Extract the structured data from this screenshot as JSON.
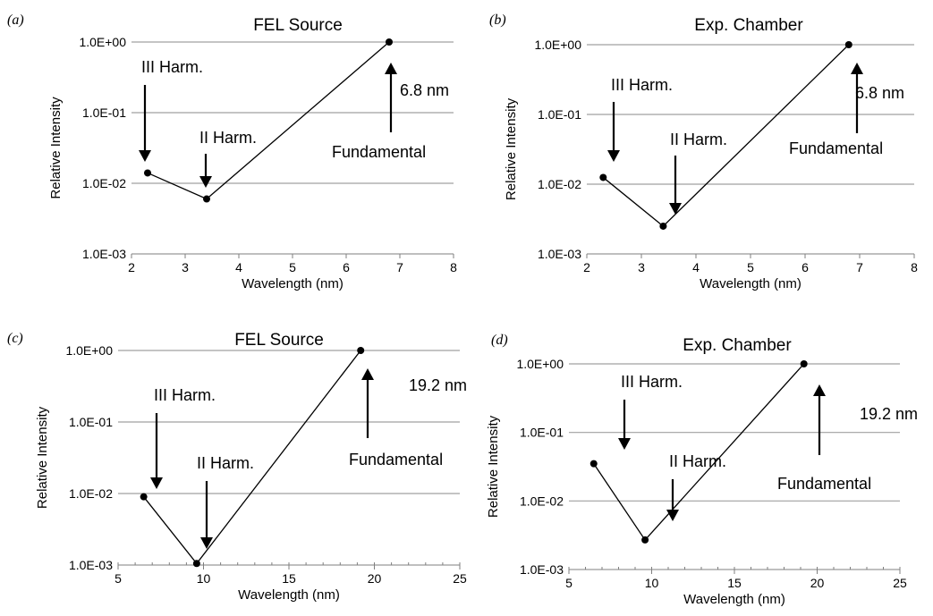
{
  "chart_data": [
    {
      "type": "line",
      "panel_label": "(a)",
      "title": "FEL Source",
      "xlabel": "Wavelength (nm)",
      "ylabel": "Relative Intensity",
      "yscale": "log",
      "xlim": [
        2,
        8
      ],
      "ylim": [
        0.001,
        1
      ],
      "xticks": [
        "2",
        "3",
        "4",
        "5",
        "6",
        "7",
        "8"
      ],
      "yticks": [
        "1.0E-03",
        "1.0E-02",
        "1.0E-01",
        "1.0E+00"
      ],
      "series": [
        {
          "x": [
            2.3,
            3.4,
            6.8
          ],
          "y": [
            0.014,
            0.006,
            1.0
          ]
        }
      ],
      "annotations": [
        {
          "text": "III Harm.",
          "arrow": "down"
        },
        {
          "text": "II Harm.",
          "arrow": "down"
        },
        {
          "text": "6.8 nm",
          "arrow": "up"
        },
        {
          "text": "Fundamental"
        }
      ]
    },
    {
      "type": "line",
      "panel_label": "(b)",
      "title": "Exp. Chamber",
      "xlabel": "Wavelength (nm)",
      "ylabel": "Relative Intensity",
      "yscale": "log",
      "xlim": [
        2,
        8
      ],
      "ylim": [
        0.001,
        1
      ],
      "xticks": [
        "2",
        "3",
        "4",
        "5",
        "6",
        "7",
        "8"
      ],
      "yticks": [
        "1.0E-03",
        "1.0E-02",
        "1.0E-01",
        "1.0E+00"
      ],
      "series": [
        {
          "x": [
            2.3,
            3.4,
            6.8
          ],
          "y": [
            0.0125,
            0.0025,
            1.0
          ]
        }
      ],
      "annotations": [
        {
          "text": "III Harm.",
          "arrow": "down"
        },
        {
          "text": "II Harm.",
          "arrow": "down"
        },
        {
          "text": "6.8 nm",
          "arrow": "up"
        },
        {
          "text": "Fundamental"
        }
      ]
    },
    {
      "type": "line",
      "panel_label": "(c)",
      "title": "FEL Source",
      "xlabel": "Wavelength (nm)",
      "ylabel": "Relative Intensity",
      "yscale": "log",
      "xlim": [
        5,
        25
      ],
      "ylim": [
        0.001,
        1
      ],
      "xticks": [
        "5",
        "10",
        "15",
        "20",
        "25"
      ],
      "yticks": [
        "1.0E-03",
        "1.0E-02",
        "1.0E-01",
        "1.0E+00"
      ],
      "series": [
        {
          "x": [
            6.5,
            9.6,
            19.2
          ],
          "y": [
            0.009,
            0.00105,
            1.0
          ]
        }
      ],
      "annotations": [
        {
          "text": "III Harm.",
          "arrow": "down"
        },
        {
          "text": "II Harm.",
          "arrow": "down"
        },
        {
          "text": "19.2 nm",
          "arrow": "up"
        },
        {
          "text": "Fundamental"
        }
      ]
    },
    {
      "type": "line",
      "panel_label": "(d)",
      "title": "Exp. Chamber",
      "xlabel": "Wavelength (nm)",
      "ylabel": "Relative Intensity",
      "yscale": "log",
      "xlim": [
        5,
        25
      ],
      "ylim": [
        0.001,
        1
      ],
      "xticks": [
        "5",
        "10",
        "15",
        "20",
        "25"
      ],
      "yticks": [
        "1.0E-03",
        "1.0E-02",
        "1.0E-01",
        "1.0E+00"
      ],
      "series": [
        {
          "x": [
            6.5,
            9.6,
            19.2
          ],
          "y": [
            0.035,
            0.0027,
            1.0
          ]
        }
      ],
      "annotations": [
        {
          "text": "III Harm.",
          "arrow": "down"
        },
        {
          "text": "II Harm.",
          "arrow": "down"
        },
        {
          "text": "19.2 nm",
          "arrow": "up"
        },
        {
          "text": "Fundamental"
        }
      ]
    }
  ]
}
